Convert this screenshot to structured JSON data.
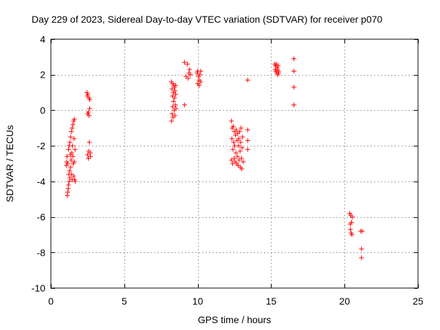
{
  "chart_data": {
    "type": "scatter",
    "title": "Day 229 of 2023, Sidereal Day-to-day VTEC variation (SDTVAR) for receiver p070",
    "xlabel": "GPS time / hours",
    "ylabel": "SDTVAR / TECUs",
    "xlim": [
      0,
      25
    ],
    "ylim": [
      -10,
      4
    ],
    "xticks": [
      0,
      5,
      10,
      15,
      20,
      25
    ],
    "yticks": [
      -10,
      -8,
      -6,
      -4,
      -2,
      0,
      2,
      4
    ],
    "grid": true,
    "marker": "plus",
    "color": "#ff0000",
    "series": [
      {
        "name": "SDTVAR",
        "points": [
          [
            1.05,
            -3.1
          ],
          [
            1.08,
            -2.9
          ],
          [
            1.1,
            -2.6
          ],
          [
            1.12,
            -4.8
          ],
          [
            1.15,
            -4.6
          ],
          [
            1.15,
            -3.0
          ],
          [
            1.18,
            -4.4
          ],
          [
            1.2,
            -4.2
          ],
          [
            1.2,
            -2.2
          ],
          [
            1.22,
            -3.6
          ],
          [
            1.25,
            -2.0
          ],
          [
            1.25,
            -4.0
          ],
          [
            1.28,
            -3.4
          ],
          [
            1.3,
            -1.8
          ],
          [
            1.3,
            -3.8
          ],
          [
            1.32,
            -2.5
          ],
          [
            1.35,
            -1.5
          ],
          [
            1.35,
            -3.2
          ],
          [
            1.38,
            -2.8
          ],
          [
            1.4,
            -1.2
          ],
          [
            1.4,
            -3.6
          ],
          [
            1.42,
            -2.4
          ],
          [
            1.45,
            -1.0
          ],
          [
            1.45,
            -3.9
          ],
          [
            1.48,
            -2.0
          ],
          [
            1.5,
            -0.8
          ],
          [
            1.5,
            -2.6
          ],
          [
            1.52,
            -3.0
          ],
          [
            1.55,
            -0.6
          ],
          [
            1.55,
            -3.7
          ],
          [
            1.58,
            -1.6
          ],
          [
            1.6,
            -0.5
          ],
          [
            1.6,
            -2.9
          ],
          [
            1.62,
            -3.9
          ],
          [
            1.65,
            -2.2
          ],
          [
            1.65,
            -4.0
          ],
          [
            2.45,
            1.0
          ],
          [
            2.48,
            0.8
          ],
          [
            2.5,
            -0.2
          ],
          [
            2.5,
            -2.5
          ],
          [
            2.52,
            0.9
          ],
          [
            2.55,
            -0.1
          ],
          [
            2.55,
            -2.7
          ],
          [
            2.58,
            -2.3
          ],
          [
            2.6,
            0.7
          ],
          [
            2.6,
            -0.3
          ],
          [
            2.62,
            -1.8
          ],
          [
            2.65,
            0.6
          ],
          [
            2.65,
            0.1
          ],
          [
            2.68,
            -2.4
          ],
          [
            2.7,
            -2.6
          ],
          [
            8.2,
            1.6
          ],
          [
            8.22,
            -0.6
          ],
          [
            8.25,
            1.2
          ],
          [
            8.25,
            -0.2
          ],
          [
            8.28,
            0.8
          ],
          [
            8.3,
            1.5
          ],
          [
            8.3,
            0.2
          ],
          [
            8.32,
            -0.4
          ],
          [
            8.35,
            1.0
          ],
          [
            8.35,
            0.5
          ],
          [
            8.38,
            1.4
          ],
          [
            8.4,
            0.0
          ],
          [
            8.4,
            1.3
          ],
          [
            8.42,
            0.7
          ],
          [
            8.45,
            1.1
          ],
          [
            8.45,
            -0.3
          ],
          [
            8.48,
            0.3
          ],
          [
            8.5,
            1.4
          ],
          [
            8.5,
            0.9
          ],
          [
            8.52,
            0.1
          ],
          [
            9.1,
            2.7
          ],
          [
            9.1,
            0.3
          ],
          [
            9.2,
            1.9
          ],
          [
            9.3,
            2.6
          ],
          [
            9.35,
            1.8
          ],
          [
            9.4,
            2.1
          ],
          [
            9.45,
            2.3
          ],
          [
            9.5,
            2.0
          ],
          [
            9.95,
            2.1
          ],
          [
            10.0,
            1.5
          ],
          [
            10.0,
            2.2
          ],
          [
            10.05,
            1.9
          ],
          [
            10.1,
            1.4
          ],
          [
            10.1,
            1.7
          ],
          [
            10.15,
            2.0
          ],
          [
            10.2,
            1.6
          ],
          [
            10.2,
            2.2
          ],
          [
            12.3,
            -0.6
          ],
          [
            12.3,
            -2.8
          ],
          [
            12.32,
            -1.6
          ],
          [
            12.35,
            -1.0
          ],
          [
            12.38,
            -3.0
          ],
          [
            12.4,
            -2.2
          ],
          [
            12.42,
            -0.9
          ],
          [
            12.45,
            -1.8
          ],
          [
            12.48,
            -2.7
          ],
          [
            12.5,
            -1.2
          ],
          [
            12.52,
            -2.0
          ],
          [
            12.55,
            -2.9
          ],
          [
            12.58,
            -1.4
          ],
          [
            12.6,
            -2.4
          ],
          [
            12.62,
            -1.1
          ],
          [
            12.65,
            -3.0
          ],
          [
            12.68,
            -1.7
          ],
          [
            12.7,
            -2.6
          ],
          [
            12.72,
            -1.3
          ],
          [
            12.75,
            -3.1
          ],
          [
            12.78,
            -2.0
          ],
          [
            12.8,
            -1.6
          ],
          [
            12.82,
            -2.8
          ],
          [
            12.85,
            -1.2
          ],
          [
            12.88,
            -2.3
          ],
          [
            12.9,
            -3.2
          ],
          [
            12.92,
            -1.8
          ],
          [
            12.95,
            -1.0
          ],
          [
            12.98,
            -2.7
          ],
          [
            13.0,
            -3.3
          ],
          [
            13.02,
            -2.1
          ],
          [
            13.05,
            -1.5
          ],
          [
            13.1,
            -2.9
          ],
          [
            13.4,
            1.7
          ],
          [
            13.4,
            -1.1
          ],
          [
            13.4,
            -1.7
          ],
          [
            13.4,
            -2.2
          ],
          [
            15.25,
            2.6
          ],
          [
            15.28,
            2.3
          ],
          [
            15.3,
            2.5
          ],
          [
            15.32,
            2.2
          ],
          [
            15.35,
            2.6
          ],
          [
            15.38,
            2.1
          ],
          [
            15.4,
            2.4
          ],
          [
            15.42,
            2.3
          ],
          [
            15.45,
            2.0
          ],
          [
            15.48,
            2.5
          ],
          [
            15.5,
            2.2
          ],
          [
            15.52,
            2.1
          ],
          [
            16.55,
            2.9
          ],
          [
            16.55,
            2.2
          ],
          [
            16.55,
            1.3
          ],
          [
            16.55,
            0.3
          ],
          [
            20.35,
            -5.8
          ],
          [
            20.38,
            -6.4
          ],
          [
            20.4,
            -6.7
          ],
          [
            20.42,
            -5.9
          ],
          [
            20.45,
            -6.9
          ],
          [
            20.48,
            -6.3
          ],
          [
            20.5,
            -7.0
          ],
          [
            20.52,
            -6.0
          ],
          [
            21.1,
            -6.8
          ],
          [
            21.15,
            -7.8
          ],
          [
            21.15,
            -8.3
          ],
          [
            21.2,
            -6.8
          ]
        ]
      }
    ]
  }
}
